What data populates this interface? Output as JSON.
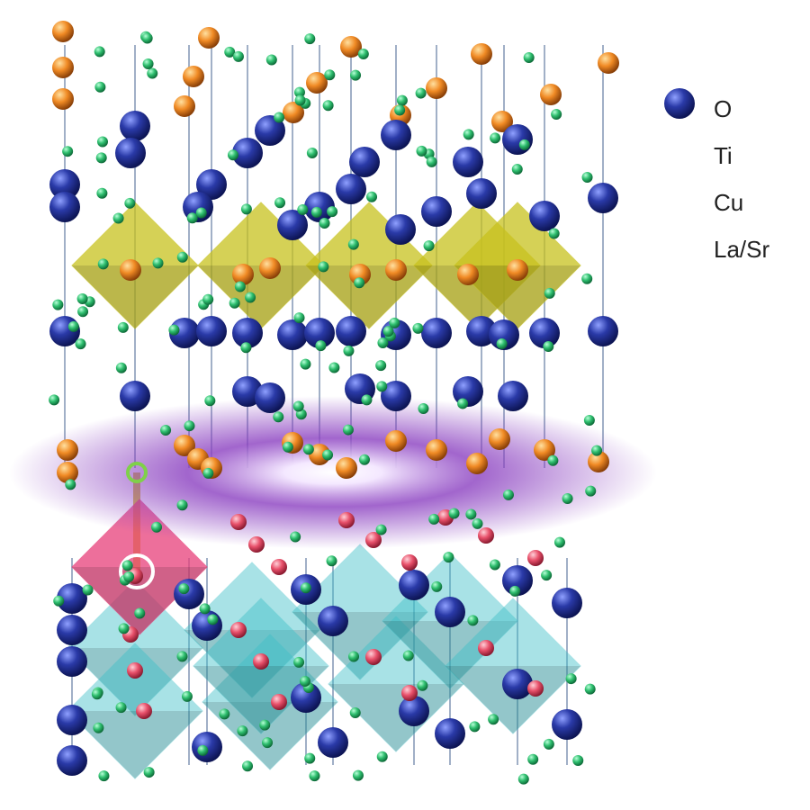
{
  "legend": {
    "items": [
      {
        "label": "O",
        "color": "#2fbf6f",
        "size": "small"
      },
      {
        "label": "Ti",
        "color": "#e8506a",
        "size": "medium"
      },
      {
        "label": "Cu",
        "color": "#f08a24",
        "size": "medium"
      },
      {
        "label": "La/Sr",
        "color": "#2a3aa8",
        "size": "large"
      }
    ]
  },
  "colors": {
    "cu_octahedra": "#c8c21e",
    "ti_octahedra": "#3fc0c8",
    "ti_highlight_octahedron": "#e8407a",
    "interface_glow": "#8a3fc0"
  }
}
